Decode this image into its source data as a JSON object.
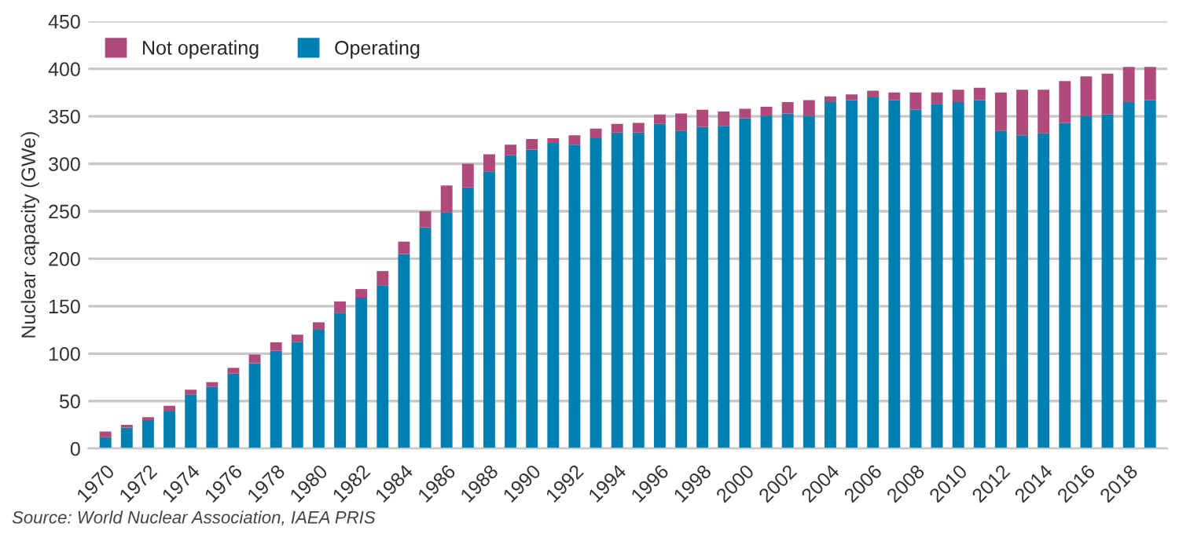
{
  "chart_data": {
    "type": "bar",
    "stacked": true,
    "ylabel": "Nuclear capacity (GWe)",
    "categories": [
      "1970",
      null,
      "1972",
      null,
      "1974",
      null,
      "1976",
      null,
      "1978",
      null,
      "1980",
      null,
      "1982",
      null,
      "1984",
      null,
      "1986",
      null,
      "1988",
      null,
      "1990",
      null,
      "1992",
      null,
      "1994",
      null,
      "1996",
      null,
      "1998",
      null,
      "2000",
      null,
      "2002",
      null,
      "2004",
      null,
      "2006",
      null,
      "2008",
      null,
      "2010",
      null,
      "2012",
      null,
      "2014",
      null,
      "2016",
      null,
      "2018",
      null
    ],
    "series": [
      {
        "name": "Operating",
        "color": "#0080b0",
        "values": [
          12,
          22,
          30,
          39,
          57,
          65,
          79,
          90,
          103,
          112,
          125,
          143,
          159,
          172,
          205,
          233,
          249,
          275,
          292,
          309,
          315,
          322,
          320,
          327,
          333,
          333,
          342,
          335,
          339,
          340,
          348,
          350,
          353,
          350,
          365,
          367,
          370,
          367,
          357,
          363,
          365,
          367,
          335,
          330,
          332,
          343,
          350,
          352,
          365,
          367
        ]
      },
      {
        "name": "Not operating",
        "color": "#b04a7a",
        "values": [
          6,
          3,
          3,
          6,
          5,
          5,
          6,
          9,
          9,
          8,
          8,
          12,
          9,
          15,
          13,
          17,
          28,
          25,
          18,
          11,
          11,
          5,
          10,
          10,
          9,
          10,
          10,
          18,
          18,
          15,
          10,
          10,
          12,
          17,
          6,
          6,
          7,
          8,
          18,
          12,
          13,
          13,
          40,
          48,
          46,
          44,
          42,
          43,
          37,
          35
        ]
      }
    ],
    "ylim": [
      0,
      450
    ],
    "yticks": [
      0,
      50,
      100,
      150,
      200,
      250,
      300,
      350,
      400,
      450
    ],
    "grid": "y",
    "legend": "top left",
    "annotations": [
      "Source: World Nuclear Association, IAEA PRIS"
    ]
  }
}
